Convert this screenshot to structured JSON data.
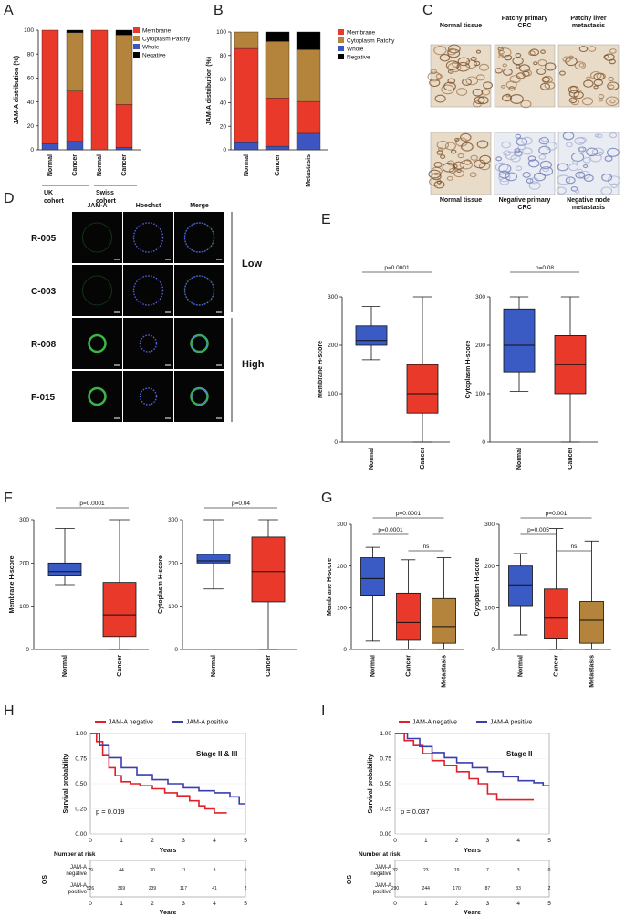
{
  "panel_labels": {
    "A": "A",
    "B": "B",
    "C": "C",
    "D": "D",
    "E": "E",
    "F": "F",
    "G": "G",
    "H": "H",
    "I": "I"
  },
  "colors": {
    "membrane": "#e8392a",
    "cytoplasm": "#b5843c",
    "whole": "#3c55c0",
    "negative": "#000000",
    "normal_box": "#3b5bc4",
    "cancer_box": "#e8392a",
    "metastasis_box": "#b5843c",
    "km_negative": "#e0202a",
    "km_positive": "#3a3fb0"
  },
  "legend": [
    "Membrane",
    "Cytoplasm Patchy",
    "Whole",
    "Negative"
  ],
  "panel_a": {
    "ylabel": "JAM-A distribution (%)",
    "yticks": [
      "0",
      "20",
      "40",
      "60",
      "80",
      "100"
    ],
    "categories": [
      "Normal",
      "Cancer",
      "Normal",
      "Cancer"
    ],
    "cohorts": [
      "UK cohort",
      "Swiss cohort"
    ],
    "cohort_lines": [
      [
        "UK",
        "cohort"
      ],
      [
        "Swiss",
        "cohort"
      ]
    ]
  },
  "panel_b": {
    "ylabel": "JAM-A distribution (%)",
    "yticks": [
      "0",
      "20",
      "40",
      "60",
      "80",
      "100"
    ],
    "categories": [
      "Normal",
      "Cancer",
      "Metastasis"
    ]
  },
  "panel_c": {
    "top_labels": [
      "Normal tissue",
      "Patchy primary CRC",
      "Patchy liver metastasis"
    ],
    "top_lines": [
      [
        "Normal tissue"
      ],
      [
        "Patchy primary",
        "CRC"
      ],
      [
        "Patchy liver",
        "metastasis"
      ]
    ],
    "bottom_labels": [
      "Normal tissue",
      "Negative primary CRC",
      "Negative node metastasis"
    ],
    "bottom_lines": [
      [
        "Normal tissue"
      ],
      [
        "Negative primary",
        "CRC"
      ],
      [
        "Negative node",
        "metastasis"
      ]
    ]
  },
  "panel_d": {
    "headers": [
      "JAM-A",
      "Hoechst",
      "Merge"
    ],
    "rows": [
      "R-005",
      "C-003",
      "R-008",
      "F-015"
    ],
    "groups": [
      "Low",
      "High"
    ]
  },
  "panel_e": {
    "membrane": {
      "ylabel": "Membrane H-score",
      "pvalue": "p=0.0001",
      "categories": [
        "Normal",
        "Cancer"
      ],
      "yticks": [
        "0",
        "100",
        "200",
        "300"
      ]
    },
    "cytoplasm": {
      "ylabel": "Cytoplasm H-score",
      "pvalue": "p=0.08",
      "categories": [
        "Normal",
        "Cancer"
      ],
      "yticks": [
        "0",
        "100",
        "200",
        "300"
      ]
    }
  },
  "panel_f": {
    "membrane": {
      "ylabel": "Membrane H-score",
      "pvalue": "p=0.0001",
      "categories": [
        "Normal",
        "Cancer"
      ],
      "yticks": [
        "0",
        "100",
        "200",
        "300"
      ]
    },
    "cytoplasm": {
      "ylabel": "Cytoplasm H-score",
      "pvalue": "p=0.04",
      "categories": [
        "Normal",
        "Cancer"
      ],
      "yticks": [
        "0",
        "100",
        "200",
        "300"
      ]
    }
  },
  "panel_g": {
    "membrane": {
      "ylabel": "Membrane H-score",
      "pvalues": [
        "p=0.0001",
        "p=0.0001",
        "ns"
      ],
      "categories": [
        "Normal",
        "Cancer",
        "Metastasis"
      ],
      "yticks": [
        "0",
        "100",
        "200",
        "300"
      ]
    },
    "cytoplasm": {
      "ylabel": "Cytoplasm H-score",
      "pvalues": [
        "p=0.001",
        "p=0.005",
        "ns"
      ],
      "categories": [
        "Normal",
        "Cancer",
        "Metastasis"
      ],
      "yticks": [
        "0",
        "100",
        "200",
        "300"
      ]
    }
  },
  "panel_h": {
    "legend": [
      "JAM-A negative",
      "JAM-A positive"
    ],
    "stage": "Stage II & III",
    "pvalue": "p = 0.019",
    "ylabel": "Survival probability",
    "xlabel": "Years",
    "yticks": [
      "0.00",
      "0.25",
      "0.50",
      "0.75",
      "1.00"
    ],
    "xticks": [
      "0",
      "1",
      "2",
      "3",
      "4",
      "5"
    ],
    "risk_title": "Number at risk",
    "risk_side": "OS",
    "risk_rows": [
      [
        "JAM-A",
        "negative"
      ],
      [
        "JAM-A",
        "positive"
      ]
    ],
    "risk_negative": [
      "79",
      "44",
      "30",
      "11",
      "3",
      "0"
    ],
    "risk_positive": [
      "526",
      "369",
      "239",
      "117",
      "41",
      "2"
    ]
  },
  "panel_i": {
    "legend": [
      "JAM-A negative",
      "JAM-A positive"
    ],
    "stage": "Stage II",
    "pvalue": "p = 0.037",
    "ylabel": "Survival probability",
    "xlabel": "Years",
    "yticks": [
      "0.00",
      "0.25",
      "0.50",
      "0.75",
      "1.00"
    ],
    "xticks": [
      "0",
      "1",
      "2",
      "3",
      "4",
      "5"
    ],
    "risk_title": "Number at risk",
    "risk_side": "OS",
    "risk_rows": [
      [
        "JAM-A",
        "negative"
      ],
      [
        "JAM-A",
        "positive"
      ]
    ],
    "risk_negative": [
      "32",
      "23",
      "19",
      "7",
      "3",
      "0"
    ],
    "risk_positive": [
      "290",
      "244",
      "170",
      "87",
      "33",
      "2"
    ]
  },
  "chart_data": [
    {
      "id": "A",
      "type": "bar",
      "stacked": true,
      "title": "",
      "ylabel": "JAM-A distribution (%)",
      "ylim": [
        0,
        100
      ],
      "categories": [
        "Normal (UK)",
        "Cancer (UK)",
        "Normal (Swiss)",
        "Cancer (Swiss)"
      ],
      "series": [
        {
          "name": "Whole",
          "values": [
            5,
            7,
            0,
            2
          ]
        },
        {
          "name": "Membrane",
          "values": [
            95,
            42,
            100,
            36
          ]
        },
        {
          "name": "Cytoplasm Patchy",
          "values": [
            0,
            49,
            0,
            58
          ]
        },
        {
          "name": "Negative",
          "values": [
            0,
            2,
            0,
            4
          ]
        }
      ]
    },
    {
      "id": "B",
      "type": "bar",
      "stacked": true,
      "title": "",
      "ylabel": "JAM-A distribution (%)",
      "ylim": [
        0,
        100
      ],
      "categories": [
        "Normal",
        "Cancer",
        "Metastasis"
      ],
      "series": [
        {
          "name": "Whole",
          "values": [
            6,
            3,
            14
          ]
        },
        {
          "name": "Membrane",
          "values": [
            80,
            41,
            27
          ]
        },
        {
          "name": "Cytoplasm Patchy",
          "values": [
            14,
            48,
            44
          ]
        },
        {
          "name": "Negative",
          "values": [
            0,
            8,
            15
          ]
        }
      ]
    },
    {
      "id": "E-membrane",
      "type": "box",
      "ylabel": "Membrane H-score",
      "ylim": [
        0,
        300
      ],
      "categories": [
        "Normal",
        "Cancer"
      ],
      "boxes": [
        {
          "min": 170,
          "q1": 200,
          "median": 210,
          "q3": 240,
          "max": 280
        },
        {
          "min": 0,
          "q1": 60,
          "median": 100,
          "q3": 160,
          "max": 300
        }
      ]
    },
    {
      "id": "E-cytoplasm",
      "type": "box",
      "ylabel": "Cytoplasm H-score",
      "ylim": [
        0,
        300
      ],
      "categories": [
        "Normal",
        "Cancer"
      ],
      "boxes": [
        {
          "min": 105,
          "q1": 145,
          "median": 200,
          "q3": 275,
          "max": 300
        },
        {
          "min": 0,
          "q1": 100,
          "median": 160,
          "q3": 220,
          "max": 300
        }
      ]
    },
    {
      "id": "F-membrane",
      "type": "box",
      "ylabel": "Membrane H-score",
      "ylim": [
        0,
        300
      ],
      "categories": [
        "Normal",
        "Cancer"
      ],
      "boxes": [
        {
          "min": 150,
          "q1": 170,
          "median": 180,
          "q3": 200,
          "max": 280
        },
        {
          "min": 0,
          "q1": 30,
          "median": 80,
          "q3": 155,
          "max": 300
        }
      ]
    },
    {
      "id": "F-cytoplasm",
      "type": "box",
      "ylabel": "Cytoplasm H-score",
      "ylim": [
        0,
        300
      ],
      "categories": [
        "Normal",
        "Cancer"
      ],
      "boxes": [
        {
          "min": 140,
          "q1": 200,
          "median": 205,
          "q3": 220,
          "max": 300
        },
        {
          "min": 0,
          "q1": 110,
          "median": 180,
          "q3": 260,
          "max": 300
        }
      ]
    },
    {
      "id": "G-membrane",
      "type": "box",
      "ylabel": "Membrane H-score",
      "ylim": [
        0,
        300
      ],
      "categories": [
        "Normal",
        "Cancer",
        "Metastasis"
      ],
      "boxes": [
        {
          "min": 20,
          "q1": 130,
          "median": 170,
          "q3": 220,
          "max": 245
        },
        {
          "min": 0,
          "q1": 22,
          "median": 65,
          "q3": 135,
          "max": 215
        },
        {
          "min": 0,
          "q1": 15,
          "median": 55,
          "q3": 122,
          "max": 220
        }
      ]
    },
    {
      "id": "G-cytoplasm",
      "type": "box",
      "ylabel": "Cytoplasm H-score",
      "ylim": [
        0,
        300
      ],
      "categories": [
        "Normal",
        "Cancer",
        "Metastasis"
      ],
      "boxes": [
        {
          "min": 35,
          "q1": 105,
          "median": 155,
          "q3": 200,
          "max": 230
        },
        {
          "min": 0,
          "q1": 25,
          "median": 75,
          "q3": 145,
          "max": 290
        },
        {
          "min": 0,
          "q1": 15,
          "median": 70,
          "q3": 115,
          "max": 260
        }
      ]
    },
    {
      "id": "H",
      "type": "line",
      "title": "Stage II & III",
      "xlabel": "Years",
      "ylabel": "Survival probability",
      "xlim": [
        0,
        5
      ],
      "ylim": [
        0,
        1
      ],
      "series": [
        {
          "name": "JAM-A negative",
          "x": [
            0,
            0.2,
            0.4,
            0.6,
            0.8,
            1,
            1.3,
            1.6,
            2,
            2.4,
            2.8,
            3.2,
            3.5,
            3.7,
            4,
            4.4
          ],
          "y": [
            1,
            0.92,
            0.78,
            0.66,
            0.58,
            0.52,
            0.5,
            0.48,
            0.45,
            0.41,
            0.38,
            0.33,
            0.28,
            0.25,
            0.21,
            0.21
          ]
        },
        {
          "name": "JAM-A positive",
          "x": [
            0,
            0.3,
            0.6,
            1,
            1.5,
            2,
            2.5,
            3,
            3.5,
            4,
            4.5,
            4.8,
            5
          ],
          "y": [
            1,
            0.88,
            0.76,
            0.66,
            0.59,
            0.54,
            0.5,
            0.46,
            0.43,
            0.41,
            0.37,
            0.3,
            0.3
          ]
        }
      ]
    },
    {
      "id": "I",
      "type": "line",
      "title": "Stage II",
      "xlabel": "Years",
      "ylabel": "Survival probability",
      "xlim": [
        0,
        5
      ],
      "ylim": [
        0,
        1
      ],
      "series": [
        {
          "name": "JAM-A negative",
          "x": [
            0,
            0.3,
            0.6,
            0.9,
            1.2,
            1.6,
            2,
            2.4,
            2.7,
            3,
            3.3,
            4,
            4.5
          ],
          "y": [
            1,
            0.93,
            0.88,
            0.8,
            0.73,
            0.68,
            0.62,
            0.55,
            0.5,
            0.4,
            0.34,
            0.34,
            0.34
          ]
        },
        {
          "name": "JAM-A positive",
          "x": [
            0,
            0.4,
            0.8,
            1.2,
            1.6,
            2,
            2.5,
            3,
            3.5,
            4,
            4.5,
            4.8,
            5
          ],
          "y": [
            1,
            0.95,
            0.87,
            0.81,
            0.76,
            0.71,
            0.66,
            0.62,
            0.57,
            0.53,
            0.51,
            0.48,
            0.48
          ]
        }
      ]
    }
  ]
}
